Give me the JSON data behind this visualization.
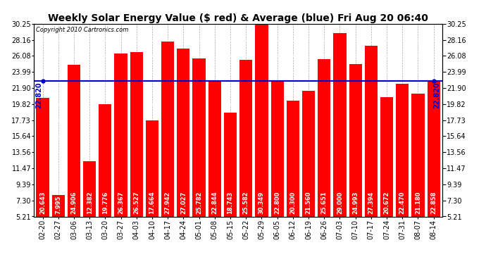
{
  "title": "Weekly Solar Energy Value ($ red) & Average (blue) Fri Aug 20 06:40",
  "copyright": "Copyright 2010 Cartronics.com",
  "average": 22.82,
  "average_label": "22.820",
  "categories": [
    "02-20",
    "02-27",
    "03-06",
    "03-13",
    "03-20",
    "03-27",
    "04-03",
    "04-10",
    "04-17",
    "04-24",
    "05-01",
    "05-08",
    "05-15",
    "05-22",
    "05-29",
    "06-05",
    "06-12",
    "06-19",
    "06-26",
    "07-03",
    "07-10",
    "07-17",
    "07-24",
    "07-31",
    "08-07",
    "08-14"
  ],
  "values": [
    20.643,
    7.995,
    24.906,
    12.382,
    19.776,
    26.367,
    26.527,
    17.664,
    27.942,
    27.027,
    25.782,
    22.844,
    18.743,
    25.582,
    30.349,
    22.8,
    20.3,
    21.56,
    25.651,
    29.0,
    24.993,
    27.394,
    20.672,
    22.47,
    21.18,
    22.858
  ],
  "bar_color": "#ff0000",
  "avg_line_color": "#0000cc",
  "background_color": "#ffffff",
  "plot_bg_color": "#ffffff",
  "ymin": 5.21,
  "ymax": 30.25,
  "yticks": [
    5.21,
    7.3,
    9.39,
    11.47,
    13.56,
    15.64,
    17.73,
    19.82,
    21.9,
    23.99,
    26.08,
    28.16,
    30.25
  ],
  "title_fontsize": 10,
  "tick_fontsize": 7,
  "bar_label_fontsize": 6,
  "value_label_color": "#ffffff",
  "avg_label_fontsize": 7
}
